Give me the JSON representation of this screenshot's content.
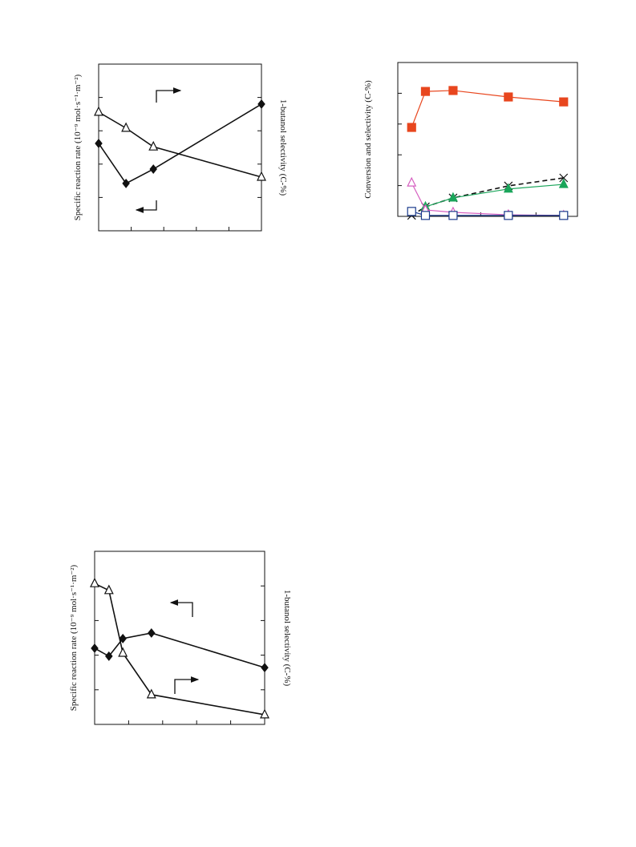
{
  "chart_data": [
    {
      "type": "line",
      "y_label": "Specific reaction rate (10⁻⁹ mol·s⁻¹·m⁻²)",
      "y2_label": "1-butanol selectivity (C-%)",
      "x": [
        0,
        0.84,
        1.68,
        5
      ],
      "xlim": [
        0,
        5
      ],
      "xticks": [
        1,
        2,
        3,
        4
      ],
      "ylim": [
        0,
        5
      ],
      "yticks": [
        1,
        2,
        3,
        4
      ],
      "y2lim": [
        0,
        5
      ],
      "y2ticks": [
        1,
        2,
        3,
        4
      ],
      "series": [
        {
          "color": "#111111",
          "marker": "diamond",
          "filled": true,
          "values": [
            2.62,
            1.42,
            1.85,
            3.8
          ]
        },
        {
          "color": "#111111",
          "marker": "triangle",
          "filled": false,
          "axis": "y2",
          "values": [
            3.56,
            3.08,
            2.52,
            1.61
          ]
        }
      ]
    },
    {
      "type": "line",
      "y_label": "Conversion and selectivity (C-%)",
      "x": [
        0.5,
        1,
        2,
        4,
        6
      ],
      "xlim": [
        0,
        6.5
      ],
      "xticks": [
        1,
        2,
        3,
        4,
        5
      ],
      "ylim": [
        0,
        5
      ],
      "yticks": [
        1,
        2,
        3,
        4
      ],
      "series": [
        {
          "color": "#e8461e",
          "marker": "square",
          "filled": true,
          "values": [
            2.89,
            4.06,
            4.09,
            3.88,
            3.72
          ]
        },
        {
          "color": "#111111",
          "marker": "cross",
          "filled": false,
          "dashed": true,
          "values": [
            0.03,
            0.31,
            0.6,
            0.99,
            1.25
          ]
        },
        {
          "color": "#1aa55a",
          "marker": "triangle",
          "filled": true,
          "values": [
            null,
            0.31,
            0.6,
            0.89,
            1.04
          ]
        },
        {
          "color": "#d65fc0",
          "marker": "triangle",
          "filled": false,
          "values": [
            1.09,
            0.21,
            0.13,
            0.05,
            0.03
          ]
        },
        {
          "color": "#1a3a8c",
          "marker": "square",
          "filled": false,
          "values": [
            0.16,
            0.03,
            0.03,
            0.03,
            0.03
          ]
        }
      ]
    },
    {
      "type": "line",
      "y_label": "Specific reaction rate (10⁻⁹ mol·s⁻¹·m⁻²)",
      "y2_label": "1-butanol selectivity (C-%)",
      "x": [
        0,
        0.42,
        0.83,
        1.67,
        5
      ],
      "xlim": [
        0,
        5
      ],
      "xticks": [
        1,
        2,
        3,
        4
      ],
      "ylim": [
        0,
        5
      ],
      "yticks": [
        1,
        2,
        3,
        4
      ],
      "y2lim": [
        0,
        5
      ],
      "y2ticks": [
        1,
        2,
        3,
        4
      ],
      "series": [
        {
          "color": "#111111",
          "marker": "diamond",
          "filled": true,
          "values": [
            2.2,
            1.97,
            2.48,
            2.64,
            1.64
          ]
        },
        {
          "color": "#111111",
          "marker": "triangle",
          "filled": false,
          "axis": "y2",
          "values": [
            4.07,
            3.87,
            2.06,
            0.86,
            0.28
          ]
        }
      ]
    }
  ]
}
